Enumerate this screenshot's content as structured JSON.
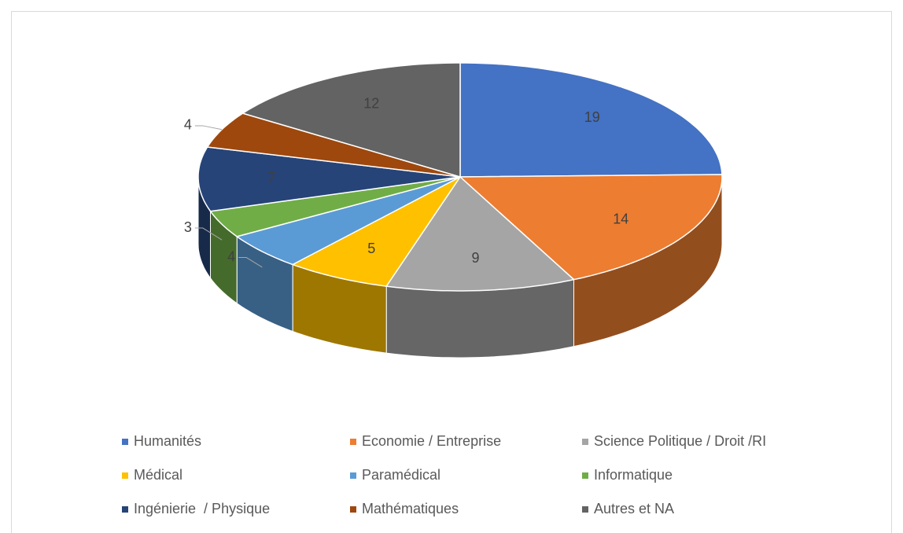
{
  "chart_data": {
    "type": "pie3d",
    "categories": [
      "Humanités",
      "Economie / Entreprise",
      "Science Politique / Droit /RI",
      "Médical",
      "Paramédical",
      "Informatique",
      "Ingénierie  / Physique",
      "Mathématiques",
      "Autres et NA"
    ],
    "values": [
      19,
      14,
      9,
      5,
      4,
      3,
      7,
      4,
      12
    ],
    "colors": [
      "#4472c4",
      "#ed7d31",
      "#a5a5a5",
      "#ffc000",
      "#5b9bd5",
      "#70ad47",
      "#264478",
      "#9e480e",
      "#636363"
    ],
    "legend": "bottom"
  }
}
